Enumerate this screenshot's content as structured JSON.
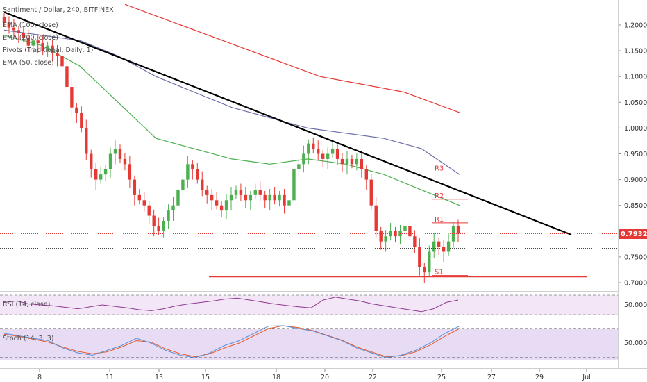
{
  "header": {
    "symbol": "Santiment / Dollar, 240, BITFINEX",
    "legend": [
      {
        "name": "EMA (100, close)",
        "color": "#6a6fa8"
      },
      {
        "name": "EMA (200, close)",
        "color": "#e53935"
      },
      {
        "name": "Pivots (Traditional, Daily, 1)",
        "color": "#e53935"
      },
      {
        "name": "EMA (50, close)",
        "color": "#4caf50"
      }
    ]
  },
  "price_axis": {
    "ticks": [
      "1.2000",
      "1.1500",
      "1.1000",
      "1.0500",
      "1.0000",
      "0.9500",
      "0.9000",
      "0.8500",
      "0.8000",
      "0.7500",
      "0.7000"
    ],
    "current_price": "0.7932",
    "current_price_color": "#e53935"
  },
  "time_axis": {
    "ticks": [
      "8",
      "11",
      "13",
      "15",
      "18",
      "20",
      "22",
      "25",
      "27",
      "29",
      "Jul"
    ]
  },
  "pivots": [
    {
      "name": "R3",
      "value": 0.915
    },
    {
      "name": "R2",
      "value": 0.862
    },
    {
      "name": "R1",
      "value": 0.816
    },
    {
      "name": "S1",
      "value": 0.714
    }
  ],
  "rsi": {
    "label": "RSI (14, close)",
    "tick": "50.0000",
    "line_color": "#8e3a8e"
  },
  "stoch": {
    "label": "Stoch (14, 3, 3)",
    "tick": "50.0000",
    "k_color": "#5b8fd6",
    "d_color": "#e65a2a"
  },
  "colors": {
    "up": "#4caf50",
    "down": "#e53935",
    "trendline": "#000000",
    "support": "#e53935"
  },
  "chart_data": {
    "type": "candlestick",
    "title": "Santiment / Dollar, 240, BITFINEX",
    "ylim": [
      0.69,
      1.23
    ],
    "price_series_close": [
      1.205,
      1.195,
      1.19,
      1.185,
      1.175,
      1.16,
      1.17,
      1.165,
      1.15,
      1.16,
      1.145,
      1.14,
      1.12,
      1.08,
      1.04,
      1.03,
      1.0,
      0.95,
      0.92,
      0.9,
      0.91,
      0.92,
      0.95,
      0.96,
      0.94,
      0.93,
      0.9,
      0.87,
      0.86,
      0.85,
      0.83,
      0.81,
      0.8,
      0.82,
      0.84,
      0.85,
      0.88,
      0.9,
      0.93,
      0.92,
      0.9,
      0.88,
      0.87,
      0.86,
      0.85,
      0.84,
      0.86,
      0.87,
      0.88,
      0.87,
      0.86,
      0.87,
      0.88,
      0.87,
      0.86,
      0.87,
      0.86,
      0.87,
      0.85,
      0.86,
      0.92,
      0.93,
      0.95,
      0.97,
      0.96,
      0.95,
      0.94,
      0.95,
      0.96,
      0.94,
      0.93,
      0.94,
      0.93,
      0.94,
      0.92,
      0.9,
      0.85,
      0.8,
      0.78,
      0.79,
      0.8,
      0.79,
      0.8,
      0.81,
      0.79,
      0.77,
      0.73,
      0.72,
      0.76,
      0.78,
      0.77,
      0.76,
      0.78,
      0.81,
      0.795
    ],
    "ema200": [
      1.24,
      1.22,
      1.2,
      1.18,
      1.16,
      1.14,
      1.12,
      1.1,
      1.09,
      1.08,
      1.07,
      1.05,
      1.03
    ],
    "ema100": [
      1.19,
      1.18,
      1.17,
      1.14,
      1.1,
      1.07,
      1.04,
      1.02,
      1.0,
      0.99,
      0.98,
      0.96,
      0.91
    ],
    "ema50": [
      1.18,
      1.16,
      1.12,
      1.05,
      0.98,
      0.96,
      0.94,
      0.93,
      0.94,
      0.93,
      0.91,
      0.88,
      0.85
    ],
    "trendline": {
      "from": {
        "x": "7",
        "y": 1.225
      },
      "to": {
        "x": "30",
        "y": 0.793
      }
    },
    "support_line": {
      "value": 0.712
    },
    "rsi_values": [
      55,
      58,
      52,
      50,
      48,
      45,
      42,
      46,
      50,
      47,
      44,
      40,
      38,
      42,
      48,
      52,
      55,
      58,
      62,
      64,
      60,
      56,
      52,
      49,
      46,
      44,
      60,
      66,
      62,
      58,
      52,
      48,
      44,
      40,
      36,
      42,
      55,
      60
    ],
    "stoch_k": [
      70,
      65,
      60,
      55,
      40,
      30,
      25,
      35,
      45,
      60,
      50,
      35,
      25,
      20,
      30,
      45,
      55,
      70,
      85,
      90,
      80,
      75,
      65,
      55,
      40,
      30,
      20,
      25,
      35,
      50,
      70,
      85
    ],
    "stoch_d": [
      68,
      64,
      58,
      52,
      42,
      33,
      28,
      32,
      42,
      55,
      52,
      38,
      28,
      22,
      28,
      40,
      50,
      65,
      80,
      88,
      82,
      76,
      66,
      56,
      42,
      32,
      22,
      24,
      32,
      46,
      64,
      80
    ]
  }
}
